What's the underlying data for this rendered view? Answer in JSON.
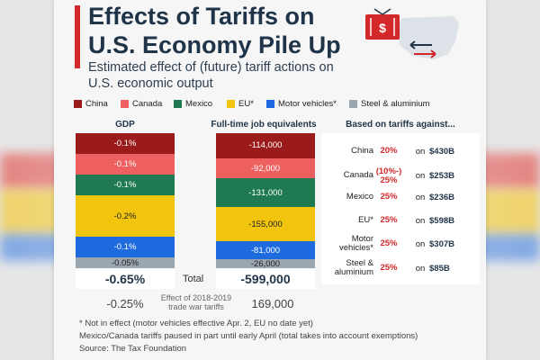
{
  "title": "Effects of Tariffs on U.S. Economy Pile Up",
  "subtitle": "Estimated effect of (future) tariff actions on U.S. economic output",
  "legend": [
    {
      "label": "China",
      "color": "#9b1b1b"
    },
    {
      "label": "Canada",
      "color": "#ee6060"
    },
    {
      "label": "Mexico",
      "color": "#1f7a52"
    },
    {
      "label": "EU*",
      "color": "#f2c40d"
    },
    {
      "label": "Motor vehicles*",
      "color": "#1e6be0"
    },
    {
      "label": "Steel & aluminium",
      "color": "#9aa6b0"
    }
  ],
  "chart_data": [
    {
      "type": "bar",
      "title": "GDP",
      "stacked": true,
      "series": [
        {
          "name": "China",
          "value": -0.1,
          "label": "-0.1%"
        },
        {
          "name": "Canada",
          "value": -0.1,
          "label": "-0.1%"
        },
        {
          "name": "Mexico",
          "value": -0.1,
          "label": "-0.1%"
        },
        {
          "name": "EU*",
          "value": -0.2,
          "label": "-0.2%"
        },
        {
          "name": "Motor vehicles*",
          "value": -0.1,
          "label": "-0.1%"
        },
        {
          "name": "Steel & aluminium",
          "value": -0.05,
          "label": "-0.05%"
        }
      ],
      "total": "-0.65%",
      "trade_war_effect": "-0.25%"
    },
    {
      "type": "bar",
      "title": "Full-time job equivalents",
      "stacked": true,
      "series": [
        {
          "name": "China",
          "value": -114000,
          "label": "-114,000"
        },
        {
          "name": "Canada",
          "value": -92000,
          "label": "-92,000"
        },
        {
          "name": "Mexico",
          "value": -131000,
          "label": "-131,000"
        },
        {
          "name": "EU*",
          "value": -155000,
          "label": "-155,000"
        },
        {
          "name": "Motor vehicles*",
          "value": -81000,
          "label": "-81,000"
        },
        {
          "name": "Steel & aluminium",
          "value": -26000,
          "label": "-26,000"
        }
      ],
      "total": "-599,000",
      "trade_war_effect": "169,000"
    },
    {
      "type": "table",
      "title": "Based on tariffs against...",
      "rows": [
        {
          "country": "China",
          "rate": "20%",
          "on": "on",
          "amount": "$430B"
        },
        {
          "country": "Canada",
          "rate": "(10%-) 25%",
          "on": "on",
          "amount": "$253B"
        },
        {
          "country": "Mexico",
          "rate": "25%",
          "on": "on",
          "amount": "$236B"
        },
        {
          "country": "EU*",
          "rate": "25%",
          "on": "on",
          "amount": "$598B"
        },
        {
          "country": "Motor vehicles*",
          "rate": "25%",
          "on": "on",
          "amount": "$307B"
        },
        {
          "country": "Steel & aluminium",
          "rate": "25%",
          "on": "on",
          "amount": "$85B"
        }
      ]
    }
  ],
  "labels": {
    "total": "Total",
    "trade_war": "Effect of 2018-2019 trade war tariffs"
  },
  "footnotes": {
    "note1": "* Not in effect (motor vehicles effective Apr. 2, EU no date yet)",
    "note2": "Mexico/Canada tariffs paused in part until early April (total takes into account exemptions)",
    "source": "Source: The Tax Foundation"
  },
  "colors": {
    "accent": "#d4292b",
    "title": "#1f3448",
    "china": "#9b1b1b",
    "canada": "#ee6060",
    "mexico": "#1f7a52",
    "eu": "#f2c40d",
    "motor": "#1e6be0",
    "steel": "#9aa6b0"
  }
}
